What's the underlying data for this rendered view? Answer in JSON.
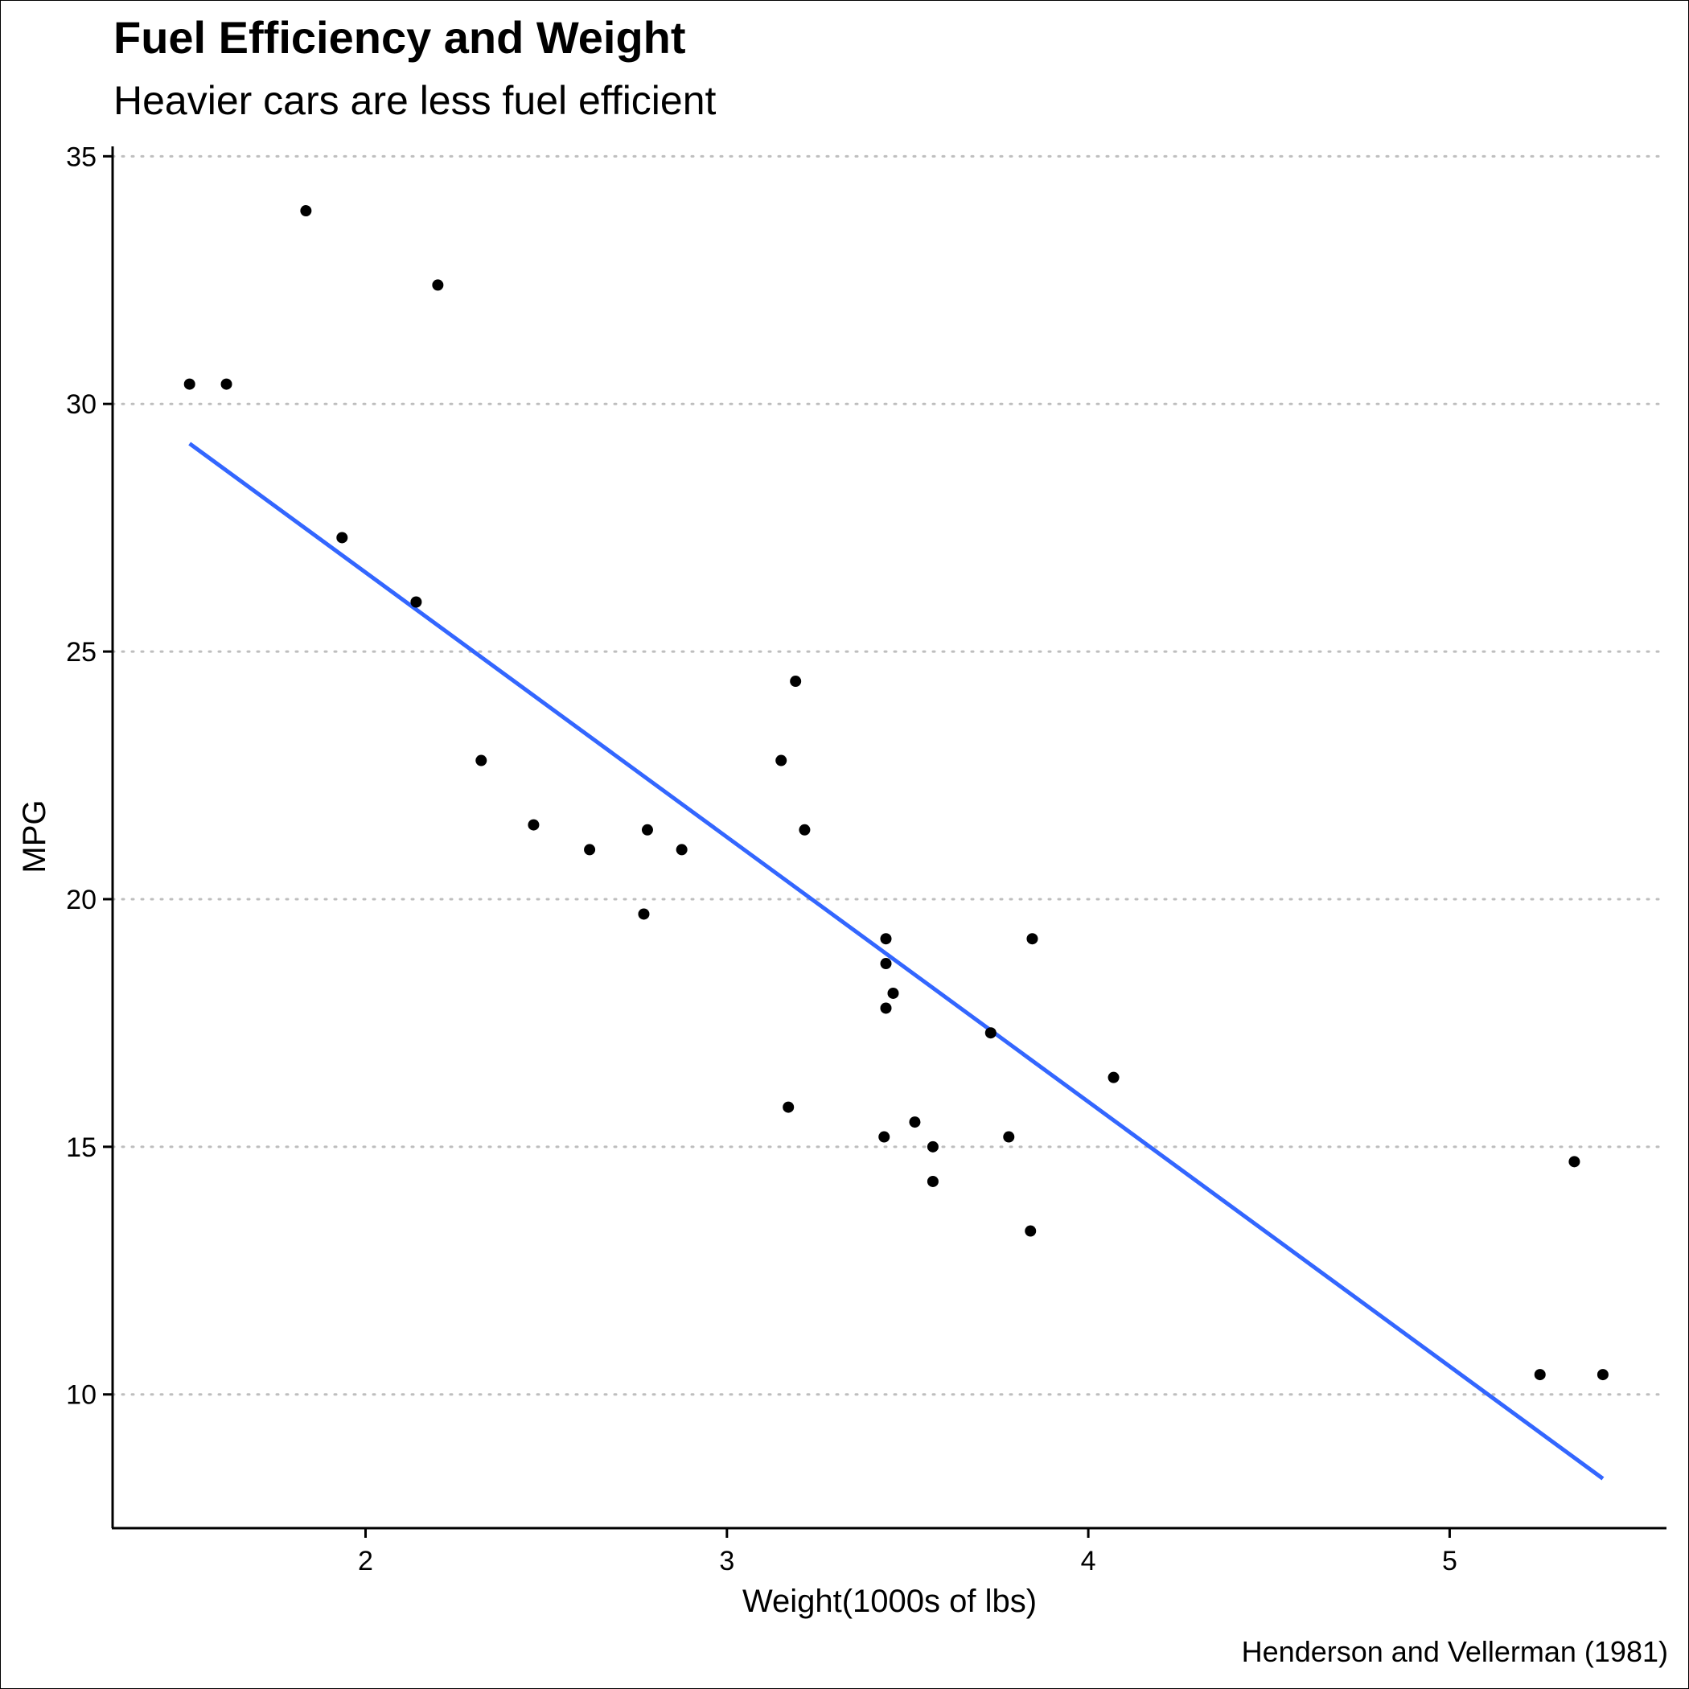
{
  "chart_data": {
    "type": "scatter",
    "title": "Fuel Efficiency and Weight",
    "subtitle": "Heavier cars are less fuel efficient",
    "xlabel": "Weight(1000s of lbs)",
    "ylabel": "MPG",
    "caption": "Henderson and Vellerman (1981)",
    "xlim": [
      1.3,
      5.6
    ],
    "ylim": [
      7.3,
      35.2
    ],
    "x_ticks": [
      2,
      3,
      4,
      5
    ],
    "y_ticks": [
      10,
      15,
      20,
      25,
      30,
      35
    ],
    "grid": "horizontal-dotted",
    "legend": "none",
    "point_color": "#000000",
    "line_color": "#3366FF",
    "gridline_color": "#BEBEBE",
    "points": [
      {
        "x": 2.62,
        "y": 21.0
      },
      {
        "x": 2.875,
        "y": 21.0
      },
      {
        "x": 2.32,
        "y": 22.8
      },
      {
        "x": 3.215,
        "y": 21.4
      },
      {
        "x": 3.44,
        "y": 18.7
      },
      {
        "x": 3.46,
        "y": 18.1
      },
      {
        "x": 3.57,
        "y": 14.3
      },
      {
        "x": 3.19,
        "y": 24.4
      },
      {
        "x": 3.15,
        "y": 22.8
      },
      {
        "x": 3.44,
        "y": 19.2
      },
      {
        "x": 3.44,
        "y": 17.8
      },
      {
        "x": 4.07,
        "y": 16.4
      },
      {
        "x": 3.73,
        "y": 17.3
      },
      {
        "x": 3.78,
        "y": 15.2
      },
      {
        "x": 5.25,
        "y": 10.4
      },
      {
        "x": 5.424,
        "y": 10.4
      },
      {
        "x": 5.345,
        "y": 14.7
      },
      {
        "x": 2.2,
        "y": 32.4
      },
      {
        "x": 1.615,
        "y": 30.4
      },
      {
        "x": 1.835,
        "y": 33.9
      },
      {
        "x": 2.465,
        "y": 21.5
      },
      {
        "x": 3.52,
        "y": 15.5
      },
      {
        "x": 3.435,
        "y": 15.2
      },
      {
        "x": 3.84,
        "y": 13.3
      },
      {
        "x": 3.845,
        "y": 19.2
      },
      {
        "x": 1.935,
        "y": 27.3
      },
      {
        "x": 2.14,
        "y": 26.0
      },
      {
        "x": 1.513,
        "y": 30.4
      },
      {
        "x": 3.17,
        "y": 15.8
      },
      {
        "x": 2.77,
        "y": 19.7
      },
      {
        "x": 3.57,
        "y": 15.0
      },
      {
        "x": 2.78,
        "y": 21.4
      }
    ],
    "fit_line": {
      "x": [
        1.513,
        5.424
      ],
      "y": [
        29.2,
        8.3
      ]
    }
  }
}
